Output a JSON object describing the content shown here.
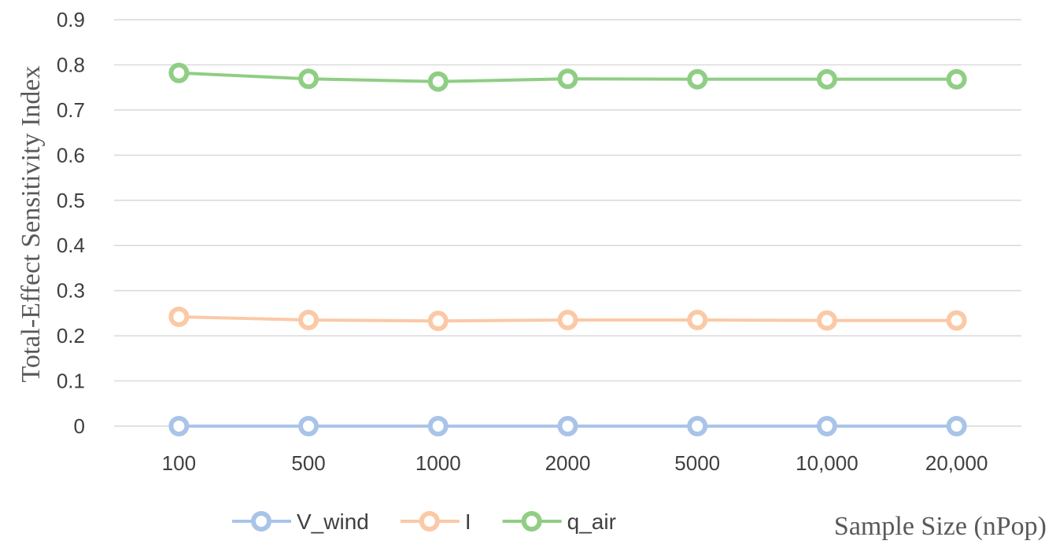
{
  "chart_data": {
    "type": "line",
    "categories": [
      "100",
      "500",
      "1000",
      "2000",
      "5000",
      "10,000",
      "20,000"
    ],
    "series": [
      {
        "name": "V_wind",
        "color": "#a9c4e8",
        "values": [
          0,
          0,
          0,
          0,
          0,
          0,
          0
        ]
      },
      {
        "name": "I",
        "color": "#fbc9a6",
        "values": [
          0.242,
          0.235,
          0.233,
          0.235,
          0.235,
          0.234,
          0.234
        ]
      },
      {
        "name": "q_air",
        "color": "#8fce84",
        "values": [
          0.782,
          0.769,
          0.763,
          0.769,
          0.768,
          0.768,
          0.768
        ]
      }
    ],
    "y_ticks": [
      "0",
      "0.1",
      "0.2",
      "0.3",
      "0.4",
      "0.5",
      "0.6",
      "0.7",
      "0.8",
      "0.9"
    ],
    "ylim": [
      0,
      0.9
    ],
    "ylabel": "Total-Effect Sensitivity Index",
    "xlabel": "Sample Size (nPop)",
    "grid": "horizontal",
    "legend_position": "bottom",
    "marker": "hollow-circle"
  }
}
